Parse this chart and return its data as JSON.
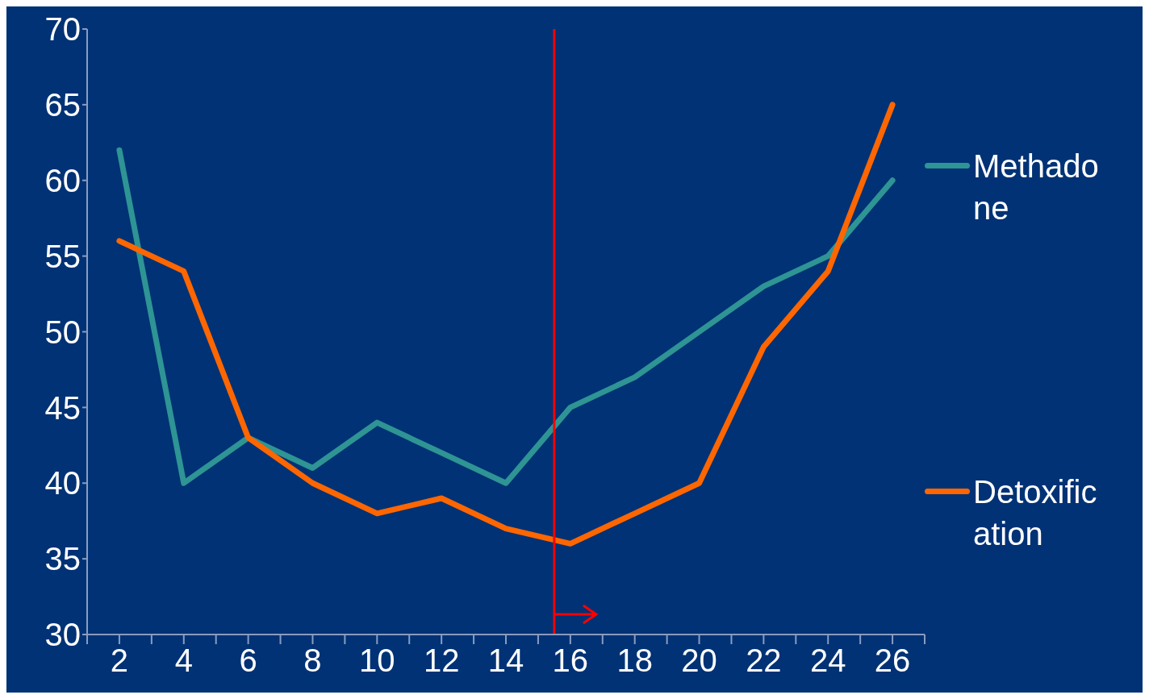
{
  "chart_data": {
    "type": "line",
    "x": [
      2,
      4,
      6,
      8,
      10,
      12,
      14,
      16,
      18,
      20,
      22,
      24,
      26
    ],
    "xlim": [
      1,
      27
    ],
    "xticks": [
      {
        "value": 1,
        "label": null
      },
      2,
      {
        "value": 3,
        "label": null
      },
      4,
      {
        "value": 5,
        "label": null
      },
      6,
      {
        "value": 7,
        "label": null
      },
      8,
      {
        "value": 9,
        "label": null
      },
      10,
      {
        "value": 11,
        "label": null
      },
      12,
      {
        "value": 13,
        "label": null
      },
      14,
      {
        "value": 15,
        "label": null
      },
      16,
      {
        "value": 17,
        "label": null
      },
      18,
      {
        "value": 19,
        "label": null
      },
      20,
      {
        "value": 21,
        "label": null
      },
      22,
      {
        "value": 23,
        "label": null
      },
      24,
      {
        "value": 25,
        "label": null
      },
      26,
      {
        "value": 27,
        "label": null
      }
    ],
    "ylim": [
      30,
      70
    ],
    "yticks": [
      30,
      35,
      40,
      45,
      50,
      55,
      60,
      65,
      70
    ],
    "grid": false,
    "legend": "right",
    "marker": "none",
    "line_style": "solid",
    "series": [
      {
        "name": "Methadone",
        "color": "#2e9494",
        "values": [
          62,
          40,
          43,
          41,
          44,
          42,
          40,
          45,
          47,
          50,
          53,
          55,
          60
        ]
      },
      {
        "name": "Detoxification",
        "color": "#ff6600",
        "values": [
          56,
          54,
          43,
          40,
          38,
          39,
          37,
          36,
          38,
          40,
          49,
          54,
          65
        ]
      }
    ],
    "ref_lines": [
      {
        "axis": "x",
        "value": 15.5,
        "color": "#ff0000"
      }
    ]
  }
}
